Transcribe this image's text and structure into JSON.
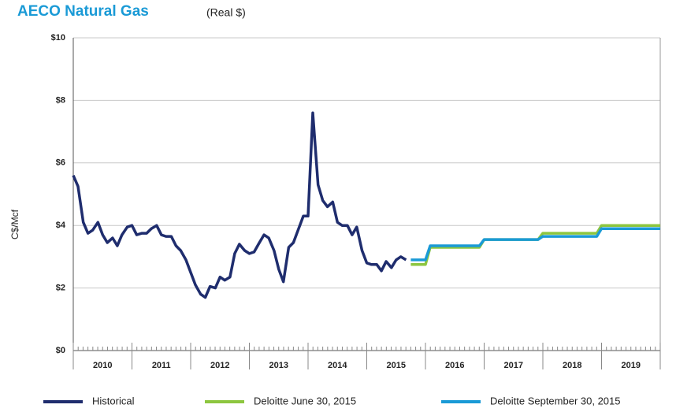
{
  "chart_data": {
    "type": "line",
    "title": "AECO Natural Gas",
    "subtitle": "(Real $)",
    "y_label": "C$/Mcf",
    "xlim": [
      2010,
      2020
    ],
    "xticks": [
      {
        "value": 2010.5,
        "label": "2010"
      },
      {
        "value": 2011.5,
        "label": "2011"
      },
      {
        "value": 2012.5,
        "label": "2012"
      },
      {
        "value": 2013.5,
        "label": "2013"
      },
      {
        "value": 2014.5,
        "label": "2014"
      },
      {
        "value": 2015.5,
        "label": "2015"
      },
      {
        "value": 2016.5,
        "label": "2016"
      },
      {
        "value": 2017.5,
        "label": "2017"
      },
      {
        "value": 2018.5,
        "label": "2018"
      },
      {
        "value": 2019.5,
        "label": "2019"
      }
    ],
    "ylim": [
      0,
      10
    ],
    "yticks": [
      {
        "value": 0,
        "label": "$0"
      },
      {
        "value": 2,
        "label": "$2"
      },
      {
        "value": 4,
        "label": "$4"
      },
      {
        "value": 6,
        "label": "$6"
      },
      {
        "value": 8,
        "label": "$8"
      },
      {
        "value": 10,
        "label": "$10"
      }
    ],
    "grid": true,
    "legend": "bottom",
    "series": [
      {
        "name": "Historical",
        "color": "#1f2d6e",
        "x": [
          2010.0,
          2010.08,
          2010.17,
          2010.25,
          2010.33,
          2010.42,
          2010.5,
          2010.58,
          2010.67,
          2010.75,
          2010.83,
          2010.92,
          2011.0,
          2011.08,
          2011.17,
          2011.25,
          2011.33,
          2011.42,
          2011.5,
          2011.58,
          2011.67,
          2011.75,
          2011.83,
          2011.92,
          2012.0,
          2012.08,
          2012.17,
          2012.25,
          2012.33,
          2012.42,
          2012.5,
          2012.58,
          2012.67,
          2012.75,
          2012.83,
          2012.92,
          2013.0,
          2013.08,
          2013.17,
          2013.25,
          2013.33,
          2013.42,
          2013.5,
          2013.58,
          2013.67,
          2013.75,
          2013.83,
          2013.92,
          2014.0,
          2014.08,
          2014.17,
          2014.25,
          2014.33,
          2014.42,
          2014.5,
          2014.58,
          2014.67,
          2014.75,
          2014.83,
          2014.92,
          2015.0,
          2015.08,
          2015.17,
          2015.25,
          2015.33,
          2015.42,
          2015.5,
          2015.58,
          2015.67
        ],
        "values": [
          5.6,
          5.25,
          4.1,
          3.75,
          3.85,
          4.1,
          3.7,
          3.45,
          3.6,
          3.35,
          3.7,
          3.95,
          4.0,
          3.7,
          3.75,
          3.75,
          3.9,
          4.0,
          3.7,
          3.65,
          3.65,
          3.35,
          3.2,
          2.9,
          2.5,
          2.1,
          1.8,
          1.7,
          2.05,
          2.0,
          2.35,
          2.25,
          2.35,
          3.1,
          3.4,
          3.2,
          3.1,
          3.15,
          3.45,
          3.7,
          3.6,
          3.2,
          2.6,
          2.2,
          3.3,
          3.45,
          3.85,
          4.3,
          4.3,
          7.6,
          5.3,
          4.8,
          4.6,
          4.75,
          4.1,
          4.0,
          4.0,
          3.7,
          3.95,
          3.2,
          2.8,
          2.75,
          2.75,
          2.55,
          2.85,
          2.65,
          2.9,
          3.0,
          2.9
        ]
      },
      {
        "name": "Deloitte June 30, 2015",
        "color": "#8dc63f",
        "x": [
          2015.75,
          2016.0,
          2016.08,
          2016.92,
          2017.0,
          2017.92,
          2018.0,
          2018.92,
          2019.0,
          2020.0
        ],
        "values": [
          2.75,
          2.75,
          3.3,
          3.3,
          3.55,
          3.55,
          3.75,
          3.75,
          4.0,
          4.0
        ]
      },
      {
        "name": "Deloitte September 30, 2015",
        "color": "#1a9ad6",
        "x": [
          2015.75,
          2016.0,
          2016.08,
          2016.92,
          2017.0,
          2017.92,
          2018.0,
          2018.92,
          2019.0,
          2020.0
        ],
        "values": [
          2.9,
          2.9,
          3.35,
          3.35,
          3.55,
          3.55,
          3.65,
          3.65,
          3.9,
          3.9
        ]
      }
    ]
  }
}
